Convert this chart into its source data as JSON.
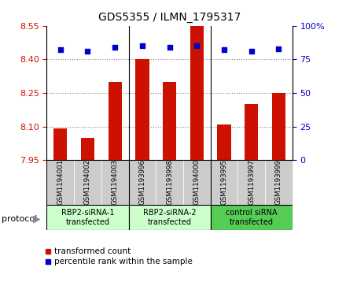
{
  "title": "GDS5355 / ILMN_1795317",
  "samples": [
    "GSM1194001",
    "GSM1194002",
    "GSM1194003",
    "GSM1193996",
    "GSM1193998",
    "GSM1194000",
    "GSM1193995",
    "GSM1193997",
    "GSM1193999"
  ],
  "red_values": [
    8.09,
    8.05,
    8.3,
    8.4,
    8.3,
    8.55,
    8.11,
    8.2,
    8.25
  ],
  "blue_values": [
    82,
    81,
    84,
    85,
    84,
    85,
    82,
    81,
    83
  ],
  "ylim_left": [
    7.95,
    8.55
  ],
  "ylim_right": [
    0,
    100
  ],
  "yticks_left": [
    7.95,
    8.1,
    8.25,
    8.4,
    8.55
  ],
  "yticks_right": [
    0,
    25,
    50,
    75,
    100
  ],
  "yticklabels_right": [
    "0",
    "25",
    "50",
    "75",
    "100%"
  ],
  "hgrid_vals": [
    8.1,
    8.25,
    8.4
  ],
  "groups": [
    {
      "label": "RBP2-siRNA-1\ntransfected",
      "start": 0,
      "end": 3,
      "color": "#ccffcc"
    },
    {
      "label": "RBP2-siRNA-2\ntransfected",
      "start": 3,
      "end": 6,
      "color": "#ccffcc"
    },
    {
      "label": "control siRNA\ntransfected",
      "start": 6,
      "end": 9,
      "color": "#55cc55"
    }
  ],
  "bar_color": "#cc1100",
  "dot_color": "#0000cc",
  "bar_width": 0.5,
  "grid_color": "#888888",
  "sample_bg_color": "#cccccc",
  "plot_bg": "#ffffff",
  "legend_red_label": "transformed count",
  "legend_blue_label": "percentile rank within the sample",
  "protocol_label": "protocol"
}
